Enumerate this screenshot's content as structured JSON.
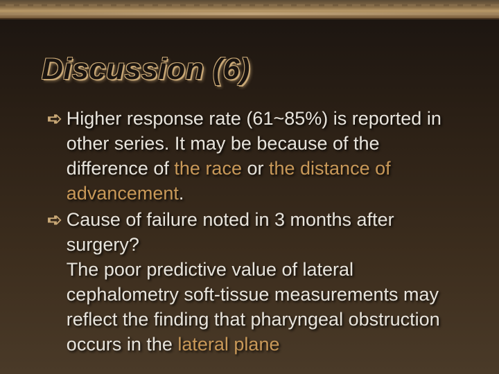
{
  "slide": {
    "title": "Discussion (6)",
    "bullet_marker": "➪",
    "bullets": [
      {
        "segments": [
          {
            "text": "Higher response rate (61~85%) is reported in other series. It may be because of the difference of ",
            "hl": false
          },
          {
            "text": "the race",
            "hl": true
          },
          {
            "text": " or ",
            "hl": false
          },
          {
            "text": "the distance of advancement",
            "hl": true
          },
          {
            "text": ".",
            "hl": false
          }
        ]
      },
      {
        "segments": [
          {
            "text": "Cause of failure noted in 3 months after surgery?",
            "hl": false
          }
        ],
        "cont": [
          {
            "text": "The poor predictive value of lateral cephalometry soft-tissue measurements may reflect the finding that pharyngeal obstruction occurs in the ",
            "hl": false
          },
          {
            "text": "lateral plane",
            "hl": true
          }
        ]
      }
    ]
  },
  "style": {
    "background_gradient": [
      "#1a1410",
      "#2a1f15",
      "#3d2e1e",
      "#4a3a28"
    ],
    "title_outline_color": "#c9a876",
    "title_fill_color": "#1a1410",
    "title_fontsize": 43,
    "body_color": "#e8e4dc",
    "highlight_color": "#c89858",
    "bullet_marker_color": "#c9a876",
    "body_fontsize": 27,
    "body_lineheight": 36,
    "border_colors": [
      "#5a4a35",
      "#8a6f4a",
      "#b89968",
      "#7a5f3f"
    ]
  }
}
